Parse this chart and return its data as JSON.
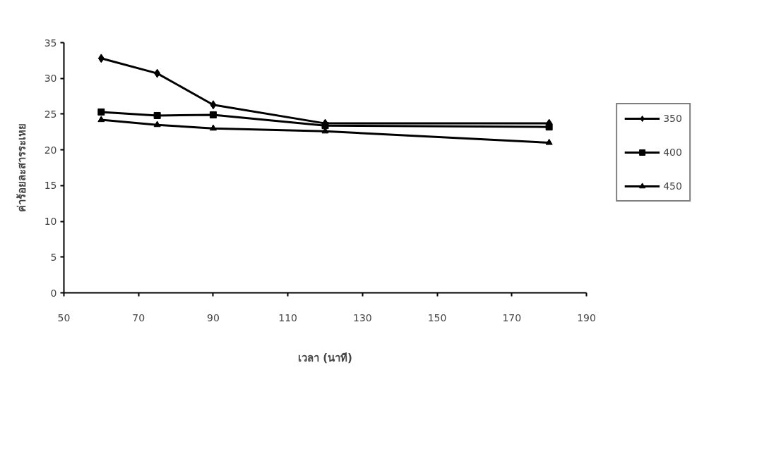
{
  "chart_data": {
    "type": "line",
    "xlabel": "เวลา (นาที)",
    "ylabel": "ค่าร้อยละสารระเหย",
    "x": [
      60,
      75,
      90,
      120,
      180
    ],
    "series": [
      {
        "name": "350",
        "color": "#000000",
        "marker": "diamond",
        "values": [
          32.8,
          30.7,
          26.3,
          23.7,
          23.7
        ]
      },
      {
        "name": "400",
        "color": "#000000",
        "marker": "square",
        "values": [
          25.3,
          24.8,
          24.9,
          23.4,
          23.2
        ]
      },
      {
        "name": "450",
        "color": "#000000",
        "marker": "triangle",
        "values": [
          24.2,
          23.5,
          23.0,
          22.6,
          21.0
        ]
      }
    ],
    "xlim": [
      50,
      190
    ],
    "xticks": [
      50,
      70,
      90,
      110,
      130,
      150,
      170,
      190
    ],
    "ylim": [
      0,
      35
    ],
    "yticks": [
      0,
      5,
      10,
      15,
      20,
      25,
      30,
      35
    ],
    "grid": false,
    "legend": "right",
    "line_style": "solid"
  }
}
